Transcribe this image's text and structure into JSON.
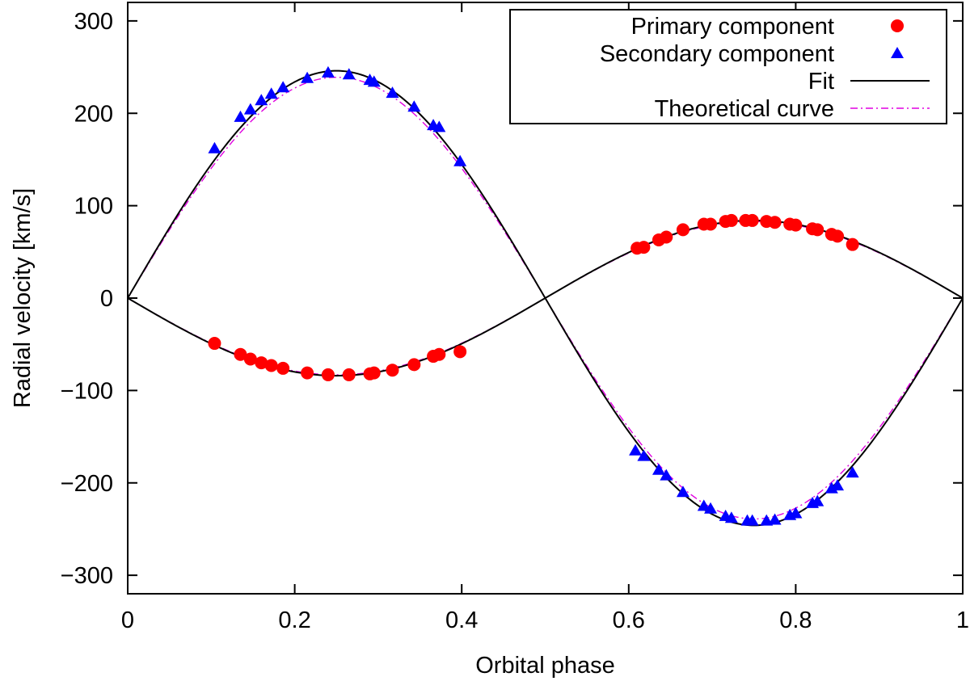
{
  "chart_data": {
    "type": "scatter",
    "xlabel": "Orbital phase",
    "ylabel": "Radial velocity [km/s]",
    "xlim": [
      0,
      1
    ],
    "ylim": [
      -320,
      320
    ],
    "x_ticks": [
      0,
      0.2,
      0.4,
      0.6,
      0.8,
      1
    ],
    "x_tick_labels": [
      "0",
      "0.2",
      "0.4",
      "0.6",
      "0.8",
      "1"
    ],
    "y_ticks": [
      300,
      200,
      100,
      0,
      -100,
      -200,
      -300
    ],
    "y_tick_labels": [
      "300",
      "200",
      "100",
      "0",
      "−100",
      "−200",
      "−300"
    ],
    "grid": false,
    "legend_position": "top-right",
    "legend": [
      {
        "label": "Primary component",
        "marker": "circle",
        "color": "#ff0000"
      },
      {
        "label": "Secondary component",
        "marker": "triangle",
        "color": "#0000ff"
      },
      {
        "label": "Fit",
        "line": "solid",
        "color": "#000000"
      },
      {
        "label": "Theoretical curve",
        "line": "dash-dot",
        "color": "#e000e0"
      }
    ],
    "series": [
      {
        "name": "Primary component",
        "kind": "points",
        "marker": "circle",
        "color": "#ff0000",
        "points": [
          [
            0.104,
            -49
          ],
          [
            0.135,
            -61
          ],
          [
            0.147,
            -66
          ],
          [
            0.16,
            -70
          ],
          [
            0.172,
            -73
          ],
          [
            0.186,
            -76
          ],
          [
            0.215,
            -81
          ],
          [
            0.24,
            -83
          ],
          [
            0.265,
            -83
          ],
          [
            0.29,
            -82
          ],
          [
            0.295,
            -81
          ],
          [
            0.317,
            -78
          ],
          [
            0.343,
            -72
          ],
          [
            0.366,
            -63
          ],
          [
            0.373,
            -61
          ],
          [
            0.398,
            -58
          ],
          [
            0.61,
            54
          ],
          [
            0.618,
            55
          ],
          [
            0.636,
            63
          ],
          [
            0.645,
            66
          ],
          [
            0.665,
            74
          ],
          [
            0.69,
            80
          ],
          [
            0.698,
            80
          ],
          [
            0.716,
            83
          ],
          [
            0.723,
            84
          ],
          [
            0.74,
            84
          ],
          [
            0.748,
            84
          ],
          [
            0.765,
            83
          ],
          [
            0.775,
            82
          ],
          [
            0.793,
            80
          ],
          [
            0.8,
            79
          ],
          [
            0.82,
            75
          ],
          [
            0.826,
            74
          ],
          [
            0.843,
            69
          ],
          [
            0.85,
            67
          ],
          [
            0.868,
            58
          ]
        ]
      },
      {
        "name": "Secondary component",
        "kind": "points",
        "marker": "triangle",
        "color": "#0000ff",
        "points": [
          [
            0.104,
            162
          ],
          [
            0.135,
            196
          ],
          [
            0.147,
            204
          ],
          [
            0.16,
            214
          ],
          [
            0.172,
            221
          ],
          [
            0.186,
            228
          ],
          [
            0.215,
            238
          ],
          [
            0.24,
            244
          ],
          [
            0.265,
            242
          ],
          [
            0.29,
            236
          ],
          [
            0.295,
            234
          ],
          [
            0.317,
            222
          ],
          [
            0.343,
            207
          ],
          [
            0.366,
            187
          ],
          [
            0.373,
            185
          ],
          [
            0.398,
            148
          ],
          [
            0.608,
            -165
          ],
          [
            0.618,
            -171
          ],
          [
            0.636,
            -186
          ],
          [
            0.645,
            -192
          ],
          [
            0.665,
            -210
          ],
          [
            0.69,
            -225
          ],
          [
            0.698,
            -228
          ],
          [
            0.716,
            -236
          ],
          [
            0.723,
            -238
          ],
          [
            0.742,
            -241
          ],
          [
            0.748,
            -241
          ],
          [
            0.765,
            -241
          ],
          [
            0.775,
            -240
          ],
          [
            0.793,
            -235
          ],
          [
            0.8,
            -233
          ],
          [
            0.82,
            -222
          ],
          [
            0.826,
            -220
          ],
          [
            0.843,
            -206
          ],
          [
            0.85,
            -203
          ],
          [
            0.868,
            -189
          ]
        ]
      },
      {
        "name": "Fit",
        "kind": "curve",
        "color": "#000000",
        "curves": [
          {
            "amplitude": -84,
            "phase_offset": 0
          },
          {
            "amplitude": 246,
            "phase_offset": 0
          }
        ]
      },
      {
        "name": "Theoretical curve",
        "kind": "curve",
        "color": "#e000e0",
        "curves": [
          {
            "amplitude": -83,
            "phase_offset": 0
          },
          {
            "amplitude": 239,
            "phase_offset": 0
          }
        ]
      }
    ]
  }
}
